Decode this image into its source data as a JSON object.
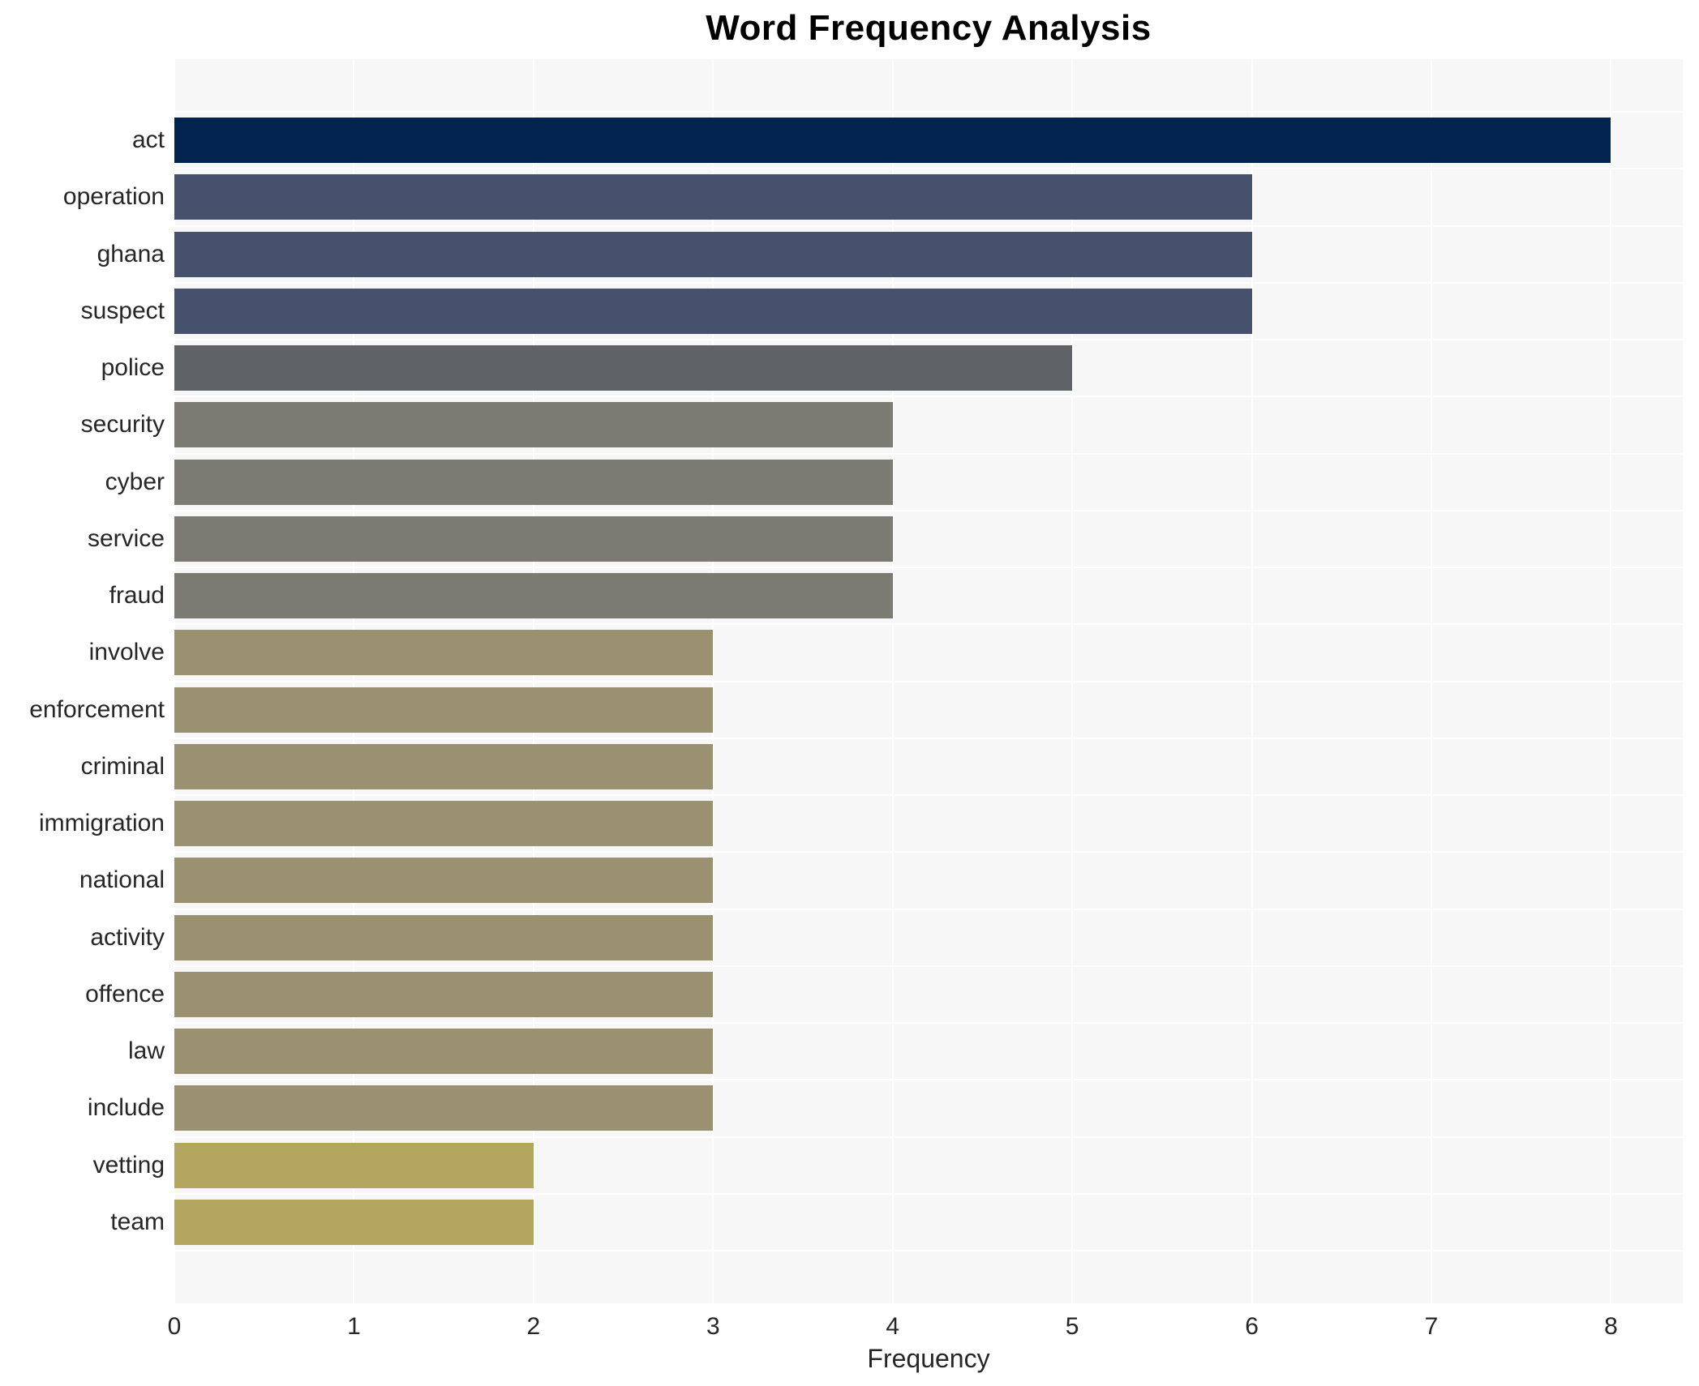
{
  "title": "Word Frequency Analysis",
  "xlabel": "Frequency",
  "chart_data": {
    "type": "bar",
    "orientation": "horizontal",
    "title": "Word Frequency Analysis",
    "xlabel": "Frequency",
    "ylabel": "",
    "xlim": [
      0,
      8.4
    ],
    "x_ticks": [
      0,
      1,
      2,
      3,
      4,
      5,
      6,
      7,
      8
    ],
    "grid": true,
    "legend": "none",
    "categories": [
      "act",
      "operation",
      "ghana",
      "suspect",
      "police",
      "security",
      "cyber",
      "service",
      "fraud",
      "involve",
      "enforcement",
      "criminal",
      "immigration",
      "national",
      "activity",
      "offence",
      "law",
      "include",
      "vetting",
      "team"
    ],
    "values": [
      8,
      6,
      6,
      6,
      5,
      4,
      4,
      4,
      4,
      3,
      3,
      3,
      3,
      3,
      3,
      3,
      3,
      3,
      2,
      2
    ],
    "bar_colors": [
      "#02234d",
      "#46516e",
      "#46516e",
      "#46516e",
      "#5f6267",
      "#7b7a73",
      "#7b7a73",
      "#7b7a73",
      "#7b7a73",
      "#9a9170",
      "#9a9170",
      "#9a9170",
      "#9a9170",
      "#9a9170",
      "#9a9170",
      "#9a9170",
      "#9a9170",
      "#9a9170",
      "#b3a75f",
      "#b3a75f"
    ]
  },
  "colors": {
    "page_bg": "#ffffff",
    "plot_bg": "#f7f7f7",
    "grid": "#ffffff",
    "text": "#262626",
    "title_text": "#000000"
  }
}
